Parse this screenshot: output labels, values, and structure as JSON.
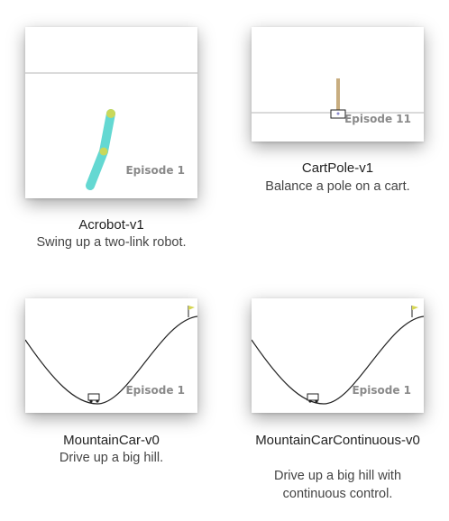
{
  "environments": [
    {
      "title": "Acrobot-v1",
      "description": "Swing up a two-link robot.",
      "episode": "Episode 1"
    },
    {
      "title": "CartPole-v1",
      "description": "Balance a pole on a cart.",
      "episode": "Episode 11"
    },
    {
      "title": "MountainCar-v0",
      "description": "Drive up a big hill.",
      "episode": "Episode 1"
    },
    {
      "title": "MountainCarContinuous-v0",
      "description": "Drive up a big hill with continuous control.",
      "episode": "Episode 1"
    }
  ],
  "colors": {
    "acrobot_link": "#64d8d2",
    "acrobot_joint": "#c9d85a",
    "pole": "#c8ad80",
    "flag": "#d6d654",
    "line": "#222222",
    "ground": "#b5b5b5"
  }
}
